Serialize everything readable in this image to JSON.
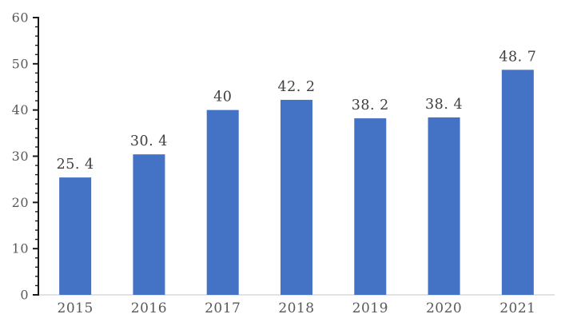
{
  "chart_data": {
    "type": "bar",
    "title": "",
    "xlabel": "",
    "ylabel": "",
    "categories": [
      "2015",
      "2016",
      "2017",
      "2018",
      "2019",
      "2020",
      "2021"
    ],
    "values": [
      25.4,
      30.4,
      40,
      42.2,
      38.2,
      38.4,
      48.7
    ],
    "value_labels": [
      "25. 4",
      "30. 4",
      "40",
      "42. 2",
      "38. 2",
      "38. 4",
      "48. 7"
    ],
    "ylim": [
      0,
      60
    ],
    "yticks": [
      0,
      10,
      20,
      30,
      40,
      50,
      60
    ],
    "minor_tick_step": 2,
    "grid": false,
    "legend": false,
    "colors": {
      "bar_fill": "#4472C4",
      "axis_line": "#1a1a1a",
      "tick_mark": "#1a1a1a",
      "baseline": "#D9D9D9",
      "axis_label": "#595959",
      "data_label": "#404040",
      "background": "#ffffff"
    }
  }
}
